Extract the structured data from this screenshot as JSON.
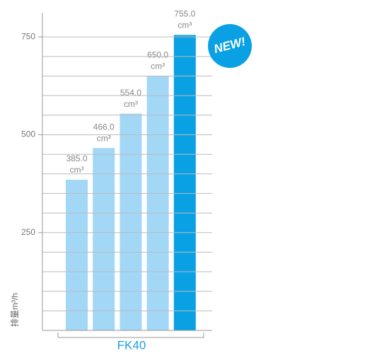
{
  "chart_data": {
    "type": "bar",
    "y_label": "排量m³/h",
    "group_label": "FK40",
    "values": [
      385,
      466,
      554,
      650,
      755
    ],
    "value_labels": [
      "385.0",
      "466.0",
      "554.0",
      "650.0",
      "755.0"
    ],
    "unit_label": "cm³",
    "colors": [
      "#a3d7f6",
      "#a3d7f6",
      "#a3d7f6",
      "#a3d7f6",
      "#0aa0e4"
    ],
    "ylim": [
      0,
      810
    ],
    "yticks": [
      250,
      500,
      750
    ],
    "yminorticks": [
      50,
      100,
      150,
      200,
      300,
      350,
      400,
      450,
      550,
      600,
      650,
      700
    ],
    "grid": true,
    "badge": "NEW!"
  }
}
